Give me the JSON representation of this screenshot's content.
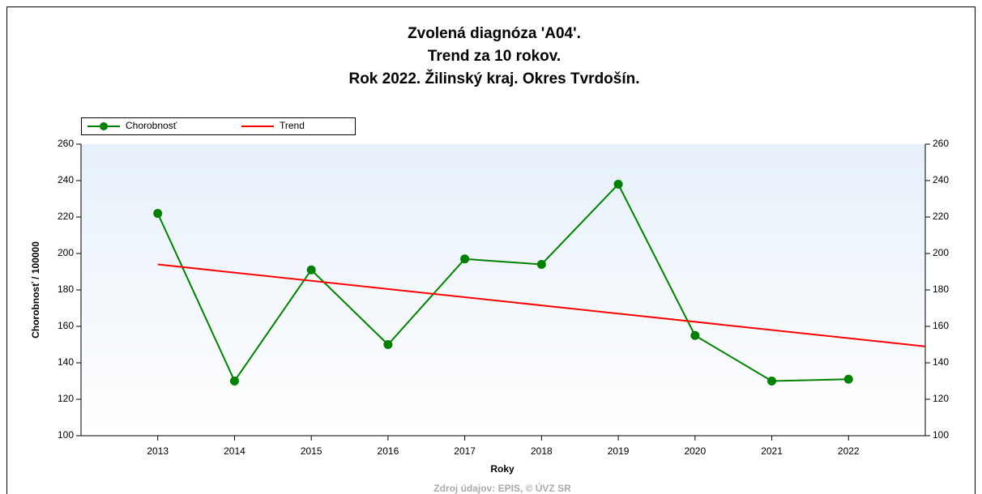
{
  "chart_data": {
    "type": "line",
    "title": [
      "Zvolená diagnóza 'A04'.",
      "Trend za 10 rokov.",
      "Rok 2022. Žilinský kraj. Okres Tvrdošín."
    ],
    "x": [
      2013,
      2014,
      2015,
      2016,
      2017,
      2018,
      2019,
      2020,
      2021,
      2022
    ],
    "series": [
      {
        "name": "Chorobnosť",
        "color": "#008000",
        "values": [
          222,
          130,
          191,
          150,
          197,
          194,
          238,
          155,
          130,
          131
        ]
      },
      {
        "name": "Trend",
        "color": "#ff0000",
        "x": [
          2013,
          2023
        ],
        "values": [
          194,
          149
        ]
      }
    ],
    "xlim": [
      2012,
      2023
    ],
    "xticks": [
      2013,
      2014,
      2015,
      2016,
      2017,
      2018,
      2019,
      2020,
      2021,
      2022
    ],
    "ylim": [
      100,
      260
    ],
    "yticks": [
      100,
      120,
      140,
      160,
      180,
      200,
      220,
      240,
      260
    ],
    "y2lim": [
      100,
      260
    ],
    "y2ticks": [
      100,
      120,
      140,
      160,
      180,
      200,
      220,
      240,
      260
    ],
    "xlabel": "Roky",
    "ylabel": "Chorobnosť / 100000",
    "source": "Zdroj údajov: EPIS, © ÚVZ SR",
    "legend": "top-left"
  }
}
